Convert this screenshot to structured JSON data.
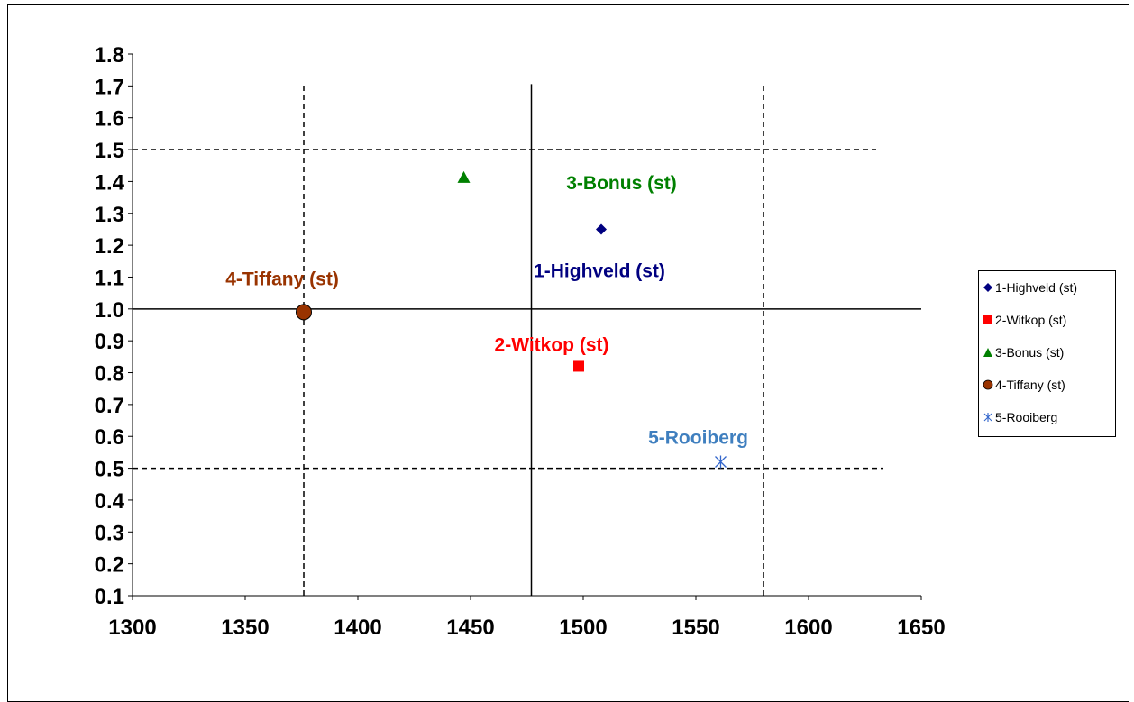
{
  "chart_data": {
    "type": "scatter",
    "title": "",
    "xlabel": "",
    "ylabel": "",
    "xlim": [
      1300,
      1650
    ],
    "ylim": [
      0.1,
      1.8
    ],
    "x_ticks": [
      1300,
      1350,
      1400,
      1450,
      1500,
      1550,
      1600,
      1650
    ],
    "y_ticks": [
      0.1,
      0.2,
      0.3,
      0.4,
      0.5,
      0.6,
      0.7,
      0.8,
      0.9,
      1.0,
      1.1,
      1.2,
      1.3,
      1.4,
      1.5,
      1.6,
      1.7,
      1.8
    ],
    "grid": false,
    "legend_position": "right",
    "series": [
      {
        "name": "1-Highveld (st)",
        "x": 1508,
        "y": 1.25,
        "marker": "diamond",
        "color": "#000080",
        "label": "1-Highveld (st)",
        "label_color": "#000080"
      },
      {
        "name": "2-Witkop (st)",
        "x": 1498,
        "y": 0.82,
        "marker": "square",
        "color": "#ff0000",
        "label": "2-Witkop (st)",
        "label_color": "#ff0000"
      },
      {
        "name": "3-Bonus (st)",
        "x": 1447,
        "y": 1.41,
        "marker": "triangle",
        "color": "#008000",
        "label": "3-Bonus (st)",
        "label_color": "#008000"
      },
      {
        "name": "4-Tiffany (st)",
        "x": 1376,
        "y": 0.99,
        "marker": "circle",
        "color": "#993300",
        "label": "4-Tiffany (st)",
        "label_color": "#993300"
      },
      {
        "name": "5-Rooiberg",
        "x": 1561,
        "y": 0.52,
        "marker": "star",
        "color": "#3366cc",
        "label": "5-Rooiberg",
        "label_color": "#3f7fbf"
      }
    ],
    "reference_lines": [
      {
        "orientation": "vertical",
        "value": 1376,
        "style": "dashed",
        "y_range": [
          0.1,
          1.7
        ]
      },
      {
        "orientation": "vertical",
        "value": 1477,
        "style": "solid",
        "y_range": [
          0.1,
          1.7
        ]
      },
      {
        "orientation": "vertical",
        "value": 1580,
        "style": "dashed",
        "y_range": [
          0.1,
          1.7
        ]
      },
      {
        "orientation": "horizontal",
        "value": 1.5,
        "style": "dashed",
        "x_range": [
          1300,
          1630
        ]
      },
      {
        "orientation": "horizontal",
        "value": 1.0,
        "style": "solid",
        "x_range": [
          1300,
          1650
        ]
      },
      {
        "orientation": "horizontal",
        "value": 0.5,
        "style": "dashed",
        "x_range": [
          1300,
          1633
        ]
      }
    ]
  }
}
